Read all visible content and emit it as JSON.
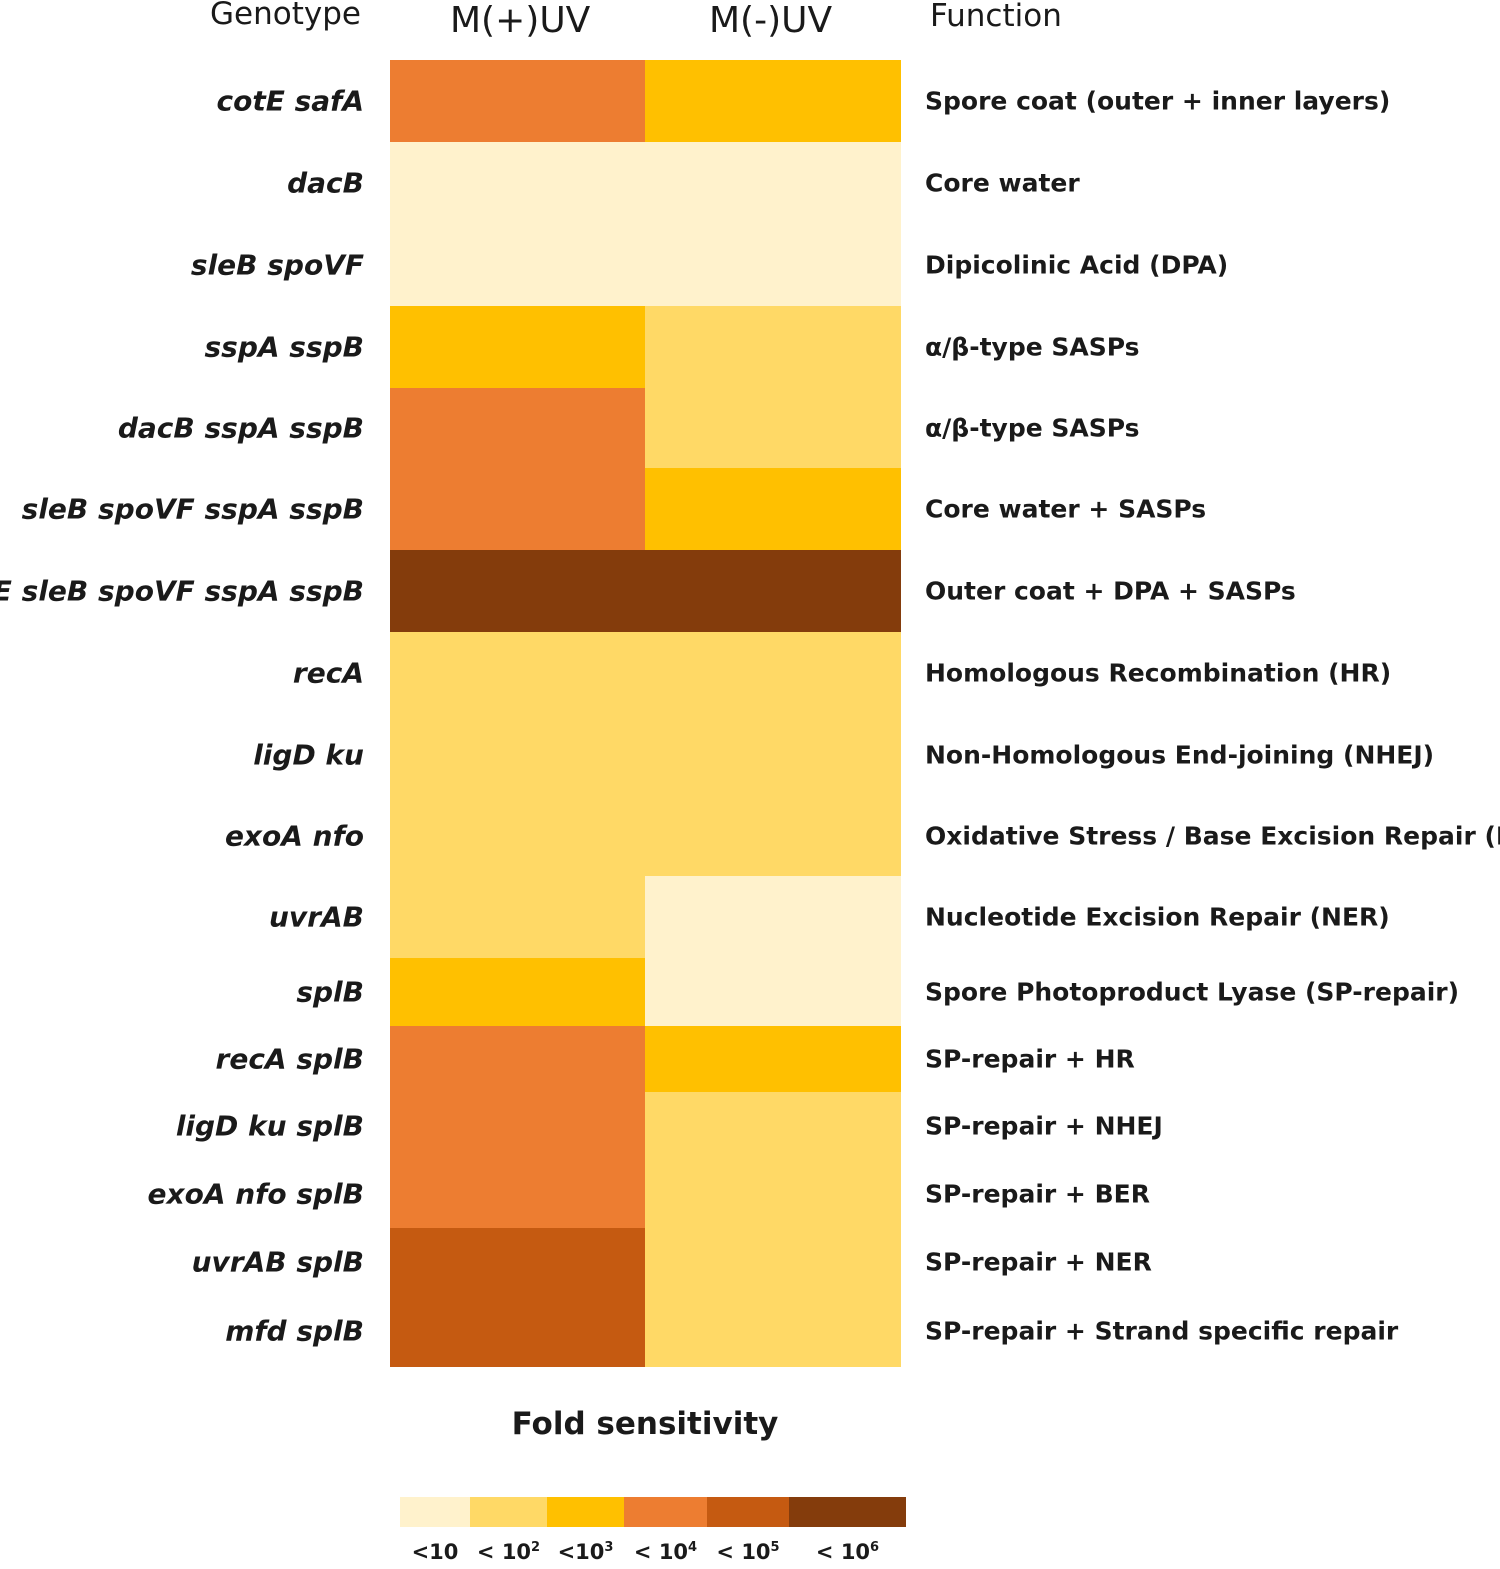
{
  "chart_data": {
    "type": "heatmap",
    "headers": {
      "genotype": "Genotype",
      "columns": [
        "M(+)UV",
        "M(-)UV"
      ],
      "function": "Function"
    },
    "legend": {
      "title": "Fold sensitivity",
      "levels": [
        {
          "label": "<10",
          "base": "<10",
          "exp": "",
          "color": "#FFF2CC"
        },
        {
          "label": "< 10^2",
          "base": "< 10",
          "exp": "2",
          "color": "#FFD966"
        },
        {
          "label": "<10^3",
          "base": "<10",
          "exp": "3",
          "color": "#FFC000"
        },
        {
          "label": "< 10^4",
          "base": "< 10",
          "exp": "4",
          "color": "#ED7D31"
        },
        {
          "label": "< 10^5",
          "base": "< 10",
          "exp": "5",
          "color": "#C55A11"
        },
        {
          "label": "< 10^6",
          "base": "< 10",
          "exp": "6",
          "color": "#843C0C"
        }
      ]
    },
    "rows": [
      {
        "genotype": "cotE safA",
        "function": "Spore coat (outer + inner layers)",
        "values": [
          3,
          2
        ]
      },
      {
        "genotype": "dacB",
        "function": "Core water",
        "values": [
          0,
          0
        ]
      },
      {
        "genotype": "sleB spoVF",
        "function": "Dipicolinic Acid (DPA)",
        "values": [
          0,
          0
        ]
      },
      {
        "genotype": "sspA sspB",
        "function": "α/β-type SASPs",
        "values": [
          2,
          1
        ]
      },
      {
        "genotype": "dacB sspA sspB",
        "function": "α/β-type SASPs",
        "values": [
          3,
          1
        ]
      },
      {
        "genotype": "sleB spoVF sspA sspB",
        "function": "Core water + SASPs",
        "values": [
          3,
          2
        ]
      },
      {
        "genotype": "cotE sleB spoVF sspA sspB",
        "function": "Outer coat + DPA + SASPs",
        "values": [
          5,
          5
        ]
      },
      {
        "genotype": "recA",
        "function": "Homologous Recombination (HR)",
        "values": [
          1,
          1
        ]
      },
      {
        "genotype": "ligD ku",
        "function": "Non-Homologous End-joining (NHEJ)",
        "values": [
          1,
          1
        ]
      },
      {
        "genotype": "exoA nfo",
        "function": "Oxidative Stress / Base Excision Repair (BER)",
        "values": [
          1,
          1
        ]
      },
      {
        "genotype": "uvrAB",
        "function": "Nucleotide Excision Repair (NER)",
        "values": [
          1,
          0
        ]
      },
      {
        "genotype": "splB",
        "function": "Spore Photoproduct Lyase (SP-repair)",
        "values": [
          2,
          0
        ]
      },
      {
        "genotype": "recA splB",
        "function": "SP-repair + HR",
        "values": [
          3,
          2
        ]
      },
      {
        "genotype": "ligD ku splB",
        "function": "SP-repair + NHEJ",
        "values": [
          3,
          1
        ]
      },
      {
        "genotype": "exoA nfo splB",
        "function": "SP-repair + BER",
        "values": [
          3,
          1
        ]
      },
      {
        "genotype": "uvrAB splB",
        "function": "SP-repair + NER",
        "values": [
          4,
          1
        ]
      },
      {
        "genotype": "mfd splB",
        "function": "SP-repair + Strand specific repair",
        "values": [
          4,
          1
        ]
      }
    ]
  }
}
